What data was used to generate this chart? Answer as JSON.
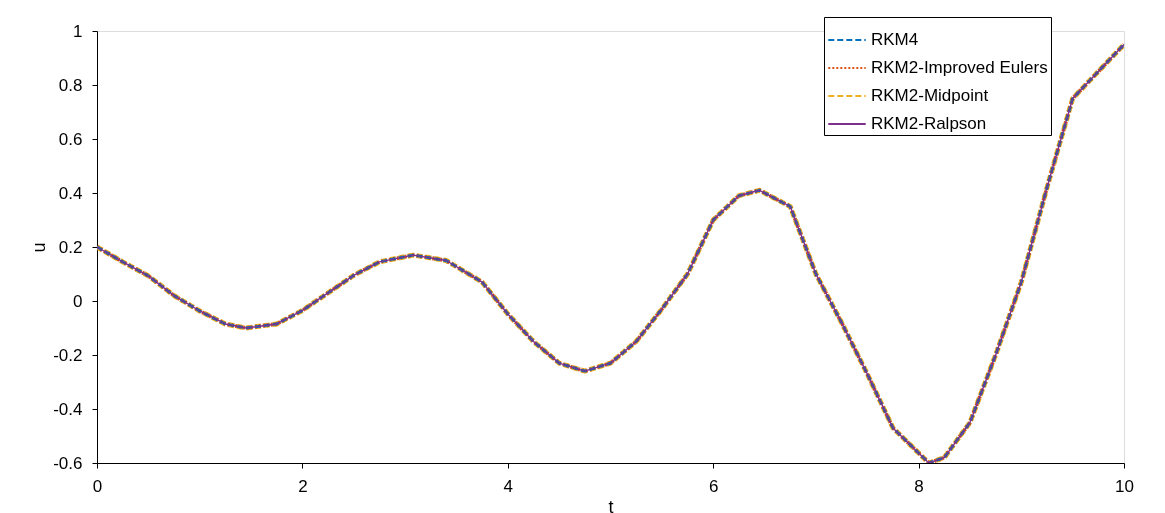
{
  "chart_data": {
    "type": "line",
    "xlabel": "t",
    "ylabel": "u",
    "x": [
      0,
      0.25,
      0.5,
      0.75,
      1.0,
      1.25,
      1.45,
      1.75,
      2.0,
      2.25,
      2.5,
      2.75,
      3.08,
      3.4,
      3.75,
      4.0,
      4.25,
      4.5,
      4.75,
      5.0,
      5.25,
      5.5,
      5.75,
      6.0,
      6.25,
      6.45,
      6.75,
      7.0,
      7.25,
      7.5,
      7.75,
      8.1,
      8.25,
      8.5,
      8.75,
      9.0,
      9.25,
      9.5,
      10
    ],
    "series": [
      {
        "name": "RKM4",
        "color": "#0072bd",
        "line_style": "dashed",
        "values": [
          0.2,
          0.145,
          0.093,
          0.02,
          -0.037,
          -0.085,
          -0.1,
          -0.085,
          -0.035,
          0.03,
          0.095,
          0.145,
          0.17,
          0.15,
          0.07,
          -0.048,
          -0.15,
          -0.23,
          -0.26,
          -0.23,
          -0.15,
          -0.03,
          0.1,
          0.3,
          0.39,
          0.41,
          0.35,
          0.1,
          -0.08,
          -0.27,
          -0.47,
          -0.6,
          -0.58,
          -0.45,
          -0.2,
          0.07,
          0.42,
          0.75,
          0.95
        ]
      },
      {
        "name": "RKM2-Improved Eulers",
        "color": "#d95319",
        "line_style": "dotted",
        "values": [
          0.2,
          0.145,
          0.093,
          0.02,
          -0.037,
          -0.085,
          -0.1,
          -0.085,
          -0.035,
          0.03,
          0.095,
          0.145,
          0.17,
          0.15,
          0.07,
          -0.048,
          -0.15,
          -0.23,
          -0.26,
          -0.23,
          -0.15,
          -0.03,
          0.1,
          0.3,
          0.39,
          0.41,
          0.35,
          0.1,
          -0.08,
          -0.27,
          -0.47,
          -0.6,
          -0.58,
          -0.45,
          -0.2,
          0.07,
          0.42,
          0.75,
          0.95
        ]
      },
      {
        "name": "RKM2-Midpoint",
        "color": "#edb120",
        "line_style": "dashed",
        "values": [
          0.2,
          0.145,
          0.093,
          0.02,
          -0.037,
          -0.085,
          -0.1,
          -0.085,
          -0.035,
          0.03,
          0.095,
          0.145,
          0.17,
          0.15,
          0.07,
          -0.048,
          -0.15,
          -0.23,
          -0.26,
          -0.23,
          -0.15,
          -0.03,
          0.1,
          0.3,
          0.39,
          0.41,
          0.35,
          0.1,
          -0.08,
          -0.27,
          -0.47,
          -0.6,
          -0.58,
          -0.45,
          -0.2,
          0.07,
          0.42,
          0.75,
          0.95
        ]
      },
      {
        "name": "RKM2-Ralpson",
        "color": "#7e2f8e",
        "line_style": "solid",
        "values": [
          0.2,
          0.145,
          0.093,
          0.02,
          -0.037,
          -0.085,
          -0.1,
          -0.085,
          -0.035,
          0.03,
          0.095,
          0.145,
          0.17,
          0.15,
          0.07,
          -0.048,
          -0.15,
          -0.23,
          -0.26,
          -0.23,
          -0.15,
          -0.03,
          0.1,
          0.3,
          0.39,
          0.41,
          0.35,
          0.1,
          -0.08,
          -0.27,
          -0.47,
          -0.6,
          -0.58,
          -0.45,
          -0.2,
          0.07,
          0.42,
          0.75,
          0.95
        ]
      }
    ],
    "xlim": [
      0,
      10
    ],
    "xticks": [
      0,
      2,
      4,
      6,
      8,
      10
    ],
    "ylim": [
      -0.6,
      1
    ],
    "yticks": [
      -0.6,
      -0.4,
      -0.2,
      0,
      0.2,
      0.4,
      0.6,
      0.8,
      1
    ],
    "grid": false,
    "legend": "top right",
    "marker": "none"
  }
}
